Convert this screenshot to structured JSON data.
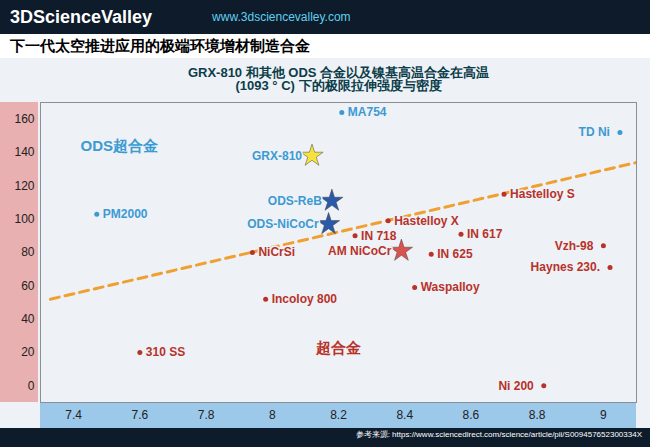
{
  "header": {
    "logo": "3DScienceValley",
    "url": "www.3dsciencevalley.com",
    "title": "下一代太空推进应用的极端环境增材制造合金"
  },
  "chart_data": {
    "type": "scatter",
    "title": "GRX-810 和其他 ODS 合金以及镍基高温合金在高温 (1093 ° C) 下的极限拉伸强度与密度",
    "xlim": [
      7.3,
      9.1
    ],
    "ylim": [
      -10,
      170
    ],
    "xticks": [
      7.4,
      7.6,
      7.8,
      8,
      8.2,
      8.4,
      8.6,
      8.8,
      9
    ],
    "yticks": [
      0,
      20,
      40,
      60,
      80,
      100,
      120,
      140,
      160
    ],
    "grid": false,
    "series": [
      {
        "name": "ODS超合金",
        "color": "#3c9ad3",
        "labels": [
          "MA754",
          "TD Ni",
          "PM2000",
          "GRX-810",
          "ODS-ReB",
          "ODS-NiCoCr"
        ],
        "x": [
          8.21,
          9.05,
          7.47,
          8.12,
          8.18,
          8.17
        ],
        "y": [
          164,
          152,
          103,
          138,
          111,
          97
        ],
        "markers": [
          "dot",
          "dot",
          "dot",
          "star",
          "star",
          "star"
        ],
        "colors": [
          "#3c9ad3",
          "#3c9ad3",
          "#3c9ad3",
          "#f5e23c",
          "#2b5aa8",
          "#2b5aa8"
        ]
      },
      {
        "name": "超合金",
        "color": "#b8322a",
        "labels": [
          "Hastelloy S",
          "Hastelloy X",
          "IN 718",
          "IN 617",
          "IN 625",
          "AM NiCoCr",
          "NiCrSi",
          "Vzh-98",
          "Haynes 230.",
          "Waspalloy",
          "Incoloy 800",
          "310 SS",
          "Ni 200"
        ],
        "x": [
          8.7,
          8.35,
          8.25,
          8.57,
          8.48,
          8.39,
          7.94,
          9.0,
          9.02,
          8.43,
          7.98,
          7.6,
          8.82
        ],
        "y": [
          115,
          99,
          90,
          91,
          79,
          81,
          80,
          84,
          71,
          59,
          52,
          20,
          0
        ],
        "markers": [
          "dot",
          "dot",
          "dot",
          "dot",
          "dot",
          "star",
          "dot",
          "dot",
          "dot",
          "dot",
          "dot",
          "dot",
          "dot"
        ],
        "colors": [
          "#b8322a",
          "#b8322a",
          "#b8322a",
          "#b8322a",
          "#b8322a",
          "#d9534f",
          "#b8322a",
          "#b8322a",
          "#b8322a",
          "#b8322a",
          "#b8322a",
          "#b8322a",
          "#b8322a"
        ]
      }
    ],
    "trend_line": {
      "x": [
        7.33,
        9.1
      ],
      "y": [
        52,
        134
      ],
      "color": "#f0a030",
      "line_style": "dashed"
    }
  },
  "source": "参考来源: https://www.sciencedirect.com/science/article/pii/S009457652300334X"
}
